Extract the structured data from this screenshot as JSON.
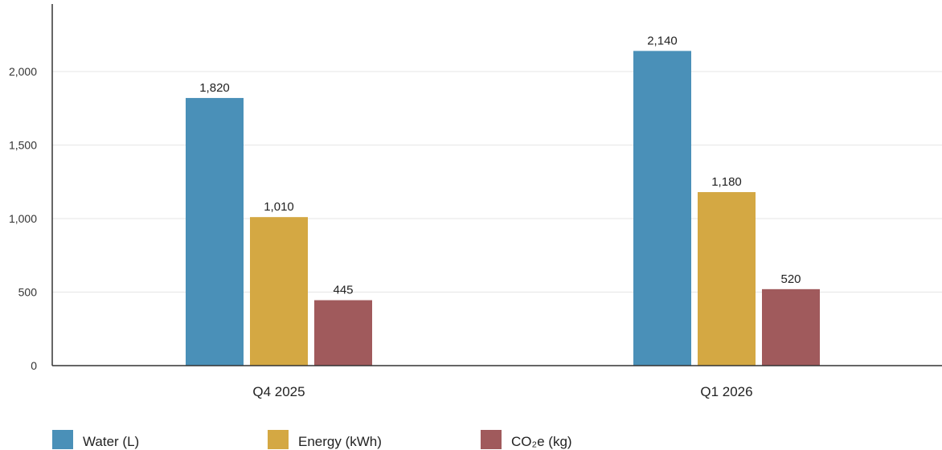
{
  "chart_data": {
    "type": "bar",
    "categories": [
      "Q4 2025",
      "Q1 2026"
    ],
    "series": [
      {
        "name": "Water (L)",
        "values": [
          1820,
          2140
        ],
        "labels": [
          "1,820",
          "2,140"
        ],
        "color": "#4a90b8"
      },
      {
        "name": "Energy (kWh)",
        "values": [
          1010,
          1180
        ],
        "labels": [
          "1,010",
          "1,180"
        ],
        "color": "#d4a843"
      },
      {
        "name": "CO₂e (kg)",
        "values": [
          445,
          520
        ],
        "labels": [
          "445",
          "520"
        ],
        "color": "#a05a5c"
      }
    ],
    "yticks": [
      0,
      500,
      1000,
      1500,
      2000
    ],
    "ytick_labels": [
      "0",
      "500",
      "1,000",
      "1,500",
      "2,000"
    ],
    "ylim": [
      0,
      2450
    ],
    "grid": true,
    "legend_position": "bottom-left",
    "title": "",
    "xlabel": "",
    "ylabel": ""
  }
}
